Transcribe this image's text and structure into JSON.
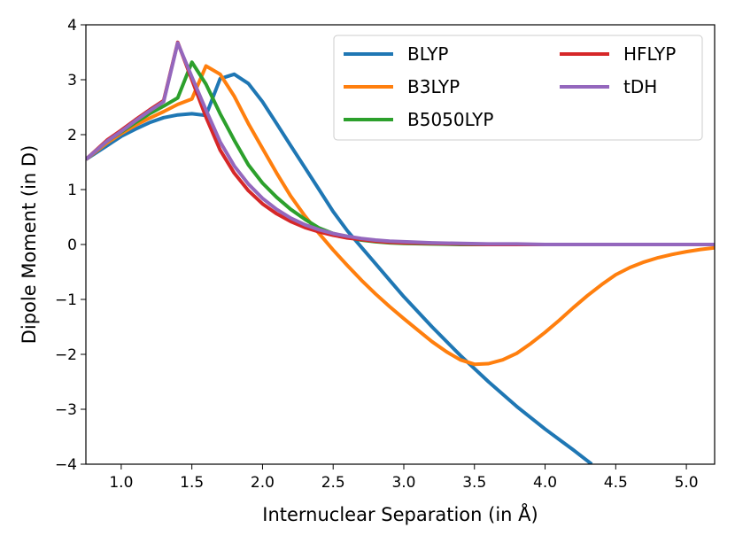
{
  "chart_data": {
    "type": "line",
    "title": "",
    "xlabel": "Internuclear Separation (in Å)",
    "ylabel": "Dipole Moment (in D)",
    "xlim": [
      0.75,
      5.2
    ],
    "ylim": [
      -4,
      4
    ],
    "xticks": [
      1.0,
      1.5,
      2.0,
      2.5,
      3.0,
      3.5,
      4.0,
      4.5,
      5.0
    ],
    "xtick_labels": [
      "1.0",
      "1.5",
      "2.0",
      "2.5",
      "3.0",
      "3.5",
      "4.0",
      "4.5",
      "5.0"
    ],
    "yticks": [
      4,
      3,
      2,
      1,
      0,
      -1,
      -2,
      -3,
      -4
    ],
    "ytick_labels": [
      "4",
      "3",
      "2",
      "1",
      "0",
      "−1",
      "−2",
      "−3",
      "−4"
    ],
    "grid": false,
    "legend_position": "top-right",
    "series": [
      {
        "name": "BLYP",
        "color": "#1f77b4",
        "x": [
          0.75,
          0.9,
          1.0,
          1.1,
          1.2,
          1.3,
          1.4,
          1.5,
          1.6,
          1.7,
          1.8,
          1.9,
          2.0,
          2.1,
          2.2,
          2.3,
          2.4,
          2.5,
          2.6,
          2.7,
          2.8,
          2.9,
          3.0,
          3.2,
          3.4,
          3.6,
          3.8,
          4.0,
          4.2,
          4.33
        ],
        "y": [
          1.55,
          1.8,
          1.97,
          2.1,
          2.22,
          2.31,
          2.36,
          2.38,
          2.35,
          3.02,
          3.1,
          2.93,
          2.6,
          2.2,
          1.8,
          1.4,
          1.0,
          0.6,
          0.25,
          -0.05,
          -0.35,
          -0.65,
          -0.95,
          -1.5,
          -2.02,
          -2.5,
          -2.95,
          -3.36,
          -3.74,
          -4.0
        ]
      },
      {
        "name": "B3LYP",
        "color": "#ff7f0e",
        "x": [
          0.75,
          0.9,
          1.0,
          1.1,
          1.2,
          1.3,
          1.4,
          1.5,
          1.6,
          1.7,
          1.8,
          1.9,
          2.0,
          2.1,
          2.2,
          2.3,
          2.4,
          2.5,
          2.6,
          2.7,
          2.8,
          2.9,
          3.0,
          3.1,
          3.2,
          3.3,
          3.4,
          3.5,
          3.6,
          3.7,
          3.8,
          3.9,
          4.0,
          4.1,
          4.2,
          4.3,
          4.4,
          4.5,
          4.6,
          4.7,
          4.8,
          4.9,
          5.0,
          5.1,
          5.2
        ],
        "y": [
          1.55,
          1.85,
          2.02,
          2.17,
          2.3,
          2.42,
          2.55,
          2.65,
          3.25,
          3.1,
          2.7,
          2.2,
          1.75,
          1.3,
          0.88,
          0.52,
          0.2,
          -0.1,
          -0.38,
          -0.65,
          -0.9,
          -1.13,
          -1.35,
          -1.56,
          -1.77,
          -1.95,
          -2.1,
          -2.18,
          -2.17,
          -2.1,
          -1.98,
          -1.8,
          -1.6,
          -1.38,
          -1.15,
          -0.93,
          -0.73,
          -0.55,
          -0.42,
          -0.32,
          -0.24,
          -0.18,
          -0.13,
          -0.09,
          -0.06
        ]
      },
      {
        "name": "B5050LYP",
        "color": "#2ca02c",
        "x": [
          0.75,
          0.9,
          1.0,
          1.1,
          1.2,
          1.3,
          1.4,
          1.5,
          1.6,
          1.7,
          1.8,
          1.9,
          2.0,
          2.1,
          2.2,
          2.3,
          2.4,
          2.5,
          2.6,
          2.7,
          2.8,
          2.9,
          3.0,
          3.2,
          3.4,
          3.6,
          3.8,
          4.0,
          4.5,
          5.0,
          5.2
        ],
        "y": [
          1.55,
          1.88,
          2.05,
          2.22,
          2.38,
          2.52,
          2.67,
          3.32,
          2.92,
          2.38,
          1.9,
          1.45,
          1.12,
          0.86,
          0.64,
          0.46,
          0.3,
          0.2,
          0.13,
          0.08,
          0.05,
          0.03,
          0.02,
          0.01,
          0.0,
          0.0,
          0.0,
          0.0,
          0.0,
          0.0,
          0.0
        ]
      },
      {
        "name": "HFLYP",
        "color": "#d62728",
        "x": [
          0.75,
          0.9,
          1.0,
          1.1,
          1.2,
          1.3,
          1.4,
          1.5,
          1.6,
          1.7,
          1.8,
          1.9,
          2.0,
          2.1,
          2.2,
          2.3,
          2.4,
          2.5,
          2.6,
          2.7,
          2.8,
          2.9,
          3.0,
          3.2,
          3.4,
          3.6,
          3.8,
          4.0,
          4.5,
          5.0,
          5.2
        ],
        "y": [
          1.55,
          1.9,
          2.08,
          2.27,
          2.45,
          2.62,
          3.68,
          3.0,
          2.32,
          1.72,
          1.3,
          0.98,
          0.74,
          0.56,
          0.42,
          0.31,
          0.23,
          0.17,
          0.12,
          0.09,
          0.06,
          0.04,
          0.03,
          0.02,
          0.01,
          0.0,
          0.0,
          0.0,
          0.0,
          0.0,
          0.0
        ]
      },
      {
        "name": "tDH",
        "color": "#9467bd",
        "x": [
          0.75,
          0.9,
          1.0,
          1.1,
          1.2,
          1.3,
          1.4,
          1.5,
          1.6,
          1.7,
          1.8,
          1.9,
          2.0,
          2.1,
          2.2,
          2.3,
          2.4,
          2.5,
          2.6,
          2.7,
          2.8,
          2.9,
          3.0,
          3.2,
          3.4,
          3.6,
          3.8,
          4.0,
          4.5,
          5.0,
          5.2
        ],
        "y": [
          1.55,
          1.88,
          2.06,
          2.25,
          2.43,
          2.6,
          3.67,
          3.05,
          2.45,
          1.87,
          1.43,
          1.1,
          0.84,
          0.64,
          0.48,
          0.36,
          0.27,
          0.2,
          0.15,
          0.11,
          0.08,
          0.06,
          0.05,
          0.03,
          0.02,
          0.01,
          0.01,
          0.0,
          0.0,
          0.0,
          0.0
        ]
      }
    ]
  }
}
